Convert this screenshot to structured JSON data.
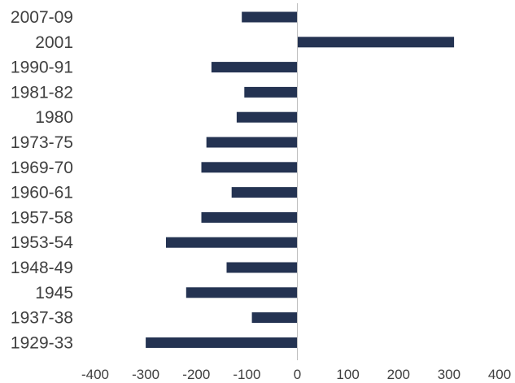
{
  "chart_data": {
    "type": "bar",
    "orientation": "horizontal",
    "categories": [
      "2007-09",
      "2001",
      "1990-91",
      "1981-82",
      "1980",
      "1973-75",
      "1969-70",
      "1960-61",
      "1957-58",
      "1953-54",
      "1948-49",
      "1945",
      "1937-38",
      "1929-33"
    ],
    "values": [
      -110,
      310,
      -170,
      -105,
      -120,
      -180,
      -190,
      -130,
      -190,
      -260,
      -140,
      -220,
      -90,
      -300
    ],
    "xlim": [
      -400,
      400
    ],
    "xticks": [
      -400,
      -300,
      -200,
      -100,
      0,
      100,
      200,
      300,
      400
    ],
    "grid": false,
    "bar_color": "#243352",
    "axis_color": "#bfbfbf"
  }
}
